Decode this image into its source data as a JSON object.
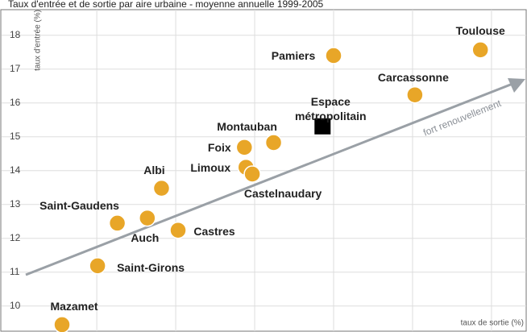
{
  "chart_data": {
    "type": "scatter",
    "title": "Taux d'entrée et de sortie par aire urbaine - moyenne annuelle 1999-2005",
    "xlabel": "taux de sortie (%)",
    "ylabel": "taux d'entrée (%)",
    "annotation": "fort renouvellement",
    "labels": [
      "Toulouse",
      "Pamiers",
      "Carcassonne",
      "Espace métropolitain",
      "Montauban",
      "Foix",
      "Limoux",
      "Castelnaudary",
      "Albi",
      "Saint-Gaudens",
      "Auch",
      "Castres",
      "Saint-Girons",
      "Mazamet"
    ],
    "x": [
      15.86,
      14.0,
      15.03,
      13.86,
      13.24,
      12.87,
      12.89,
      12.97,
      11.82,
      11.26,
      11.64,
      12.03,
      11.01,
      10.56
    ],
    "values": [
      17.57,
      17.4,
      16.24,
      15.31,
      14.83,
      14.69,
      14.1,
      13.9,
      13.48,
      12.45,
      12.6,
      12.24,
      11.19,
      9.45
    ],
    "markers": [
      "circle",
      "circle",
      "circle",
      "square",
      "circle",
      "circle",
      "circle",
      "circle",
      "circle",
      "circle",
      "circle",
      "circle",
      "circle",
      "circle"
    ],
    "color": "#e8a628",
    "highlight_color": "#000000",
    "xlim": [
      10.08,
      16.45
    ],
    "ylim": [
      9.4,
      18.9
    ],
    "xticks": [
      11,
      12,
      13,
      14,
      15,
      16
    ],
    "yticks": [
      10,
      11,
      12,
      13,
      14,
      15,
      16,
      17,
      18
    ],
    "grid": true
  }
}
